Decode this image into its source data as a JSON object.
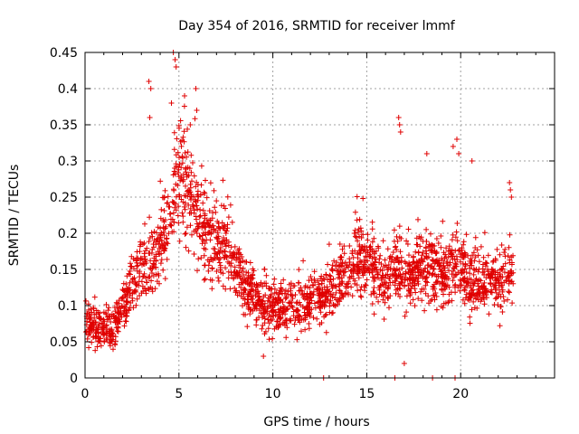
{
  "chart_data": {
    "type": "scatter",
    "title": "Day 354 of 2016, SRMTID for receiver lmmf",
    "xlabel": "GPS time / hours",
    "ylabel": "SRMTID / TECUs",
    "xlim": [
      0,
      25
    ],
    "ylim": [
      0,
      0.45
    ],
    "xticks": [
      0,
      5,
      10,
      15,
      20
    ],
    "yticks": [
      0,
      0.05,
      0.1,
      0.15,
      0.2,
      0.25,
      0.3,
      0.35,
      0.4,
      0.45
    ],
    "marker": "plus",
    "color": "#e00000",
    "grid": true,
    "series": [
      {
        "name": "SRMTID",
        "trend": [
          {
            "x": 0.0,
            "y": 0.08
          },
          {
            "x": 0.5,
            "y": 0.07
          },
          {
            "x": 1.0,
            "y": 0.065
          },
          {
            "x": 1.5,
            "y": 0.07
          },
          {
            "x": 2.0,
            "y": 0.09
          },
          {
            "x": 2.5,
            "y": 0.13
          },
          {
            "x": 3.0,
            "y": 0.15
          },
          {
            "x": 3.5,
            "y": 0.16
          },
          {
            "x": 4.0,
            "y": 0.17
          },
          {
            "x": 4.5,
            "y": 0.22
          },
          {
            "x": 5.0,
            "y": 0.27
          },
          {
            "x": 5.5,
            "y": 0.25
          },
          {
            "x": 6.0,
            "y": 0.22
          },
          {
            "x": 6.5,
            "y": 0.2
          },
          {
            "x": 7.0,
            "y": 0.19
          },
          {
            "x": 7.5,
            "y": 0.18
          },
          {
            "x": 8.0,
            "y": 0.15
          },
          {
            "x": 8.5,
            "y": 0.12
          },
          {
            "x": 9.0,
            "y": 0.11
          },
          {
            "x": 9.5,
            "y": 0.1
          },
          {
            "x": 10.0,
            "y": 0.095
          },
          {
            "x": 10.5,
            "y": 0.095
          },
          {
            "x": 11.0,
            "y": 0.1
          },
          {
            "x": 11.5,
            "y": 0.1
          },
          {
            "x": 12.0,
            "y": 0.105
          },
          {
            "x": 12.5,
            "y": 0.11
          },
          {
            "x": 13.0,
            "y": 0.12
          },
          {
            "x": 13.5,
            "y": 0.13
          },
          {
            "x": 14.0,
            "y": 0.15
          },
          {
            "x": 14.5,
            "y": 0.17
          },
          {
            "x": 15.0,
            "y": 0.16
          },
          {
            "x": 15.5,
            "y": 0.15
          },
          {
            "x": 16.0,
            "y": 0.13
          },
          {
            "x": 16.5,
            "y": 0.15
          },
          {
            "x": 17.0,
            "y": 0.14
          },
          {
            "x": 17.5,
            "y": 0.14
          },
          {
            "x": 18.0,
            "y": 0.15
          },
          {
            "x": 18.5,
            "y": 0.15
          },
          {
            "x": 19.0,
            "y": 0.15
          },
          {
            "x": 19.5,
            "y": 0.16
          },
          {
            "x": 20.0,
            "y": 0.15
          },
          {
            "x": 20.5,
            "y": 0.13
          },
          {
            "x": 21.0,
            "y": 0.13
          },
          {
            "x": 21.5,
            "y": 0.14
          },
          {
            "x": 22.0,
            "y": 0.13
          },
          {
            "x": 22.5,
            "y": 0.14
          },
          {
            "x": 22.8,
            "y": 0.14
          }
        ],
        "outliers": [
          {
            "x": 3.4,
            "y": 0.41
          },
          {
            "x": 3.5,
            "y": 0.4
          },
          {
            "x": 3.45,
            "y": 0.36
          },
          {
            "x": 4.7,
            "y": 0.45
          },
          {
            "x": 4.8,
            "y": 0.44
          },
          {
            "x": 4.85,
            "y": 0.43
          },
          {
            "x": 5.9,
            "y": 0.4
          },
          {
            "x": 5.95,
            "y": 0.37
          },
          {
            "x": 5.3,
            "y": 0.39
          },
          {
            "x": 4.6,
            "y": 0.38
          },
          {
            "x": 5.6,
            "y": 0.35
          },
          {
            "x": 16.7,
            "y": 0.36
          },
          {
            "x": 16.75,
            "y": 0.35
          },
          {
            "x": 16.8,
            "y": 0.34
          },
          {
            "x": 19.8,
            "y": 0.33
          },
          {
            "x": 19.6,
            "y": 0.32
          },
          {
            "x": 19.9,
            "y": 0.31
          },
          {
            "x": 18.2,
            "y": 0.31
          },
          {
            "x": 20.6,
            "y": 0.3
          },
          {
            "x": 22.6,
            "y": 0.27
          },
          {
            "x": 22.65,
            "y": 0.26
          },
          {
            "x": 22.7,
            "y": 0.25
          },
          {
            "x": 12.7,
            "y": 0.0
          },
          {
            "x": 16.5,
            "y": 0.0
          },
          {
            "x": 18.5,
            "y": 0.0
          },
          {
            "x": 19.7,
            "y": 0.0
          },
          {
            "x": 17.0,
            "y": 0.02
          },
          {
            "x": 9.5,
            "y": 0.03
          }
        ]
      }
    ]
  }
}
